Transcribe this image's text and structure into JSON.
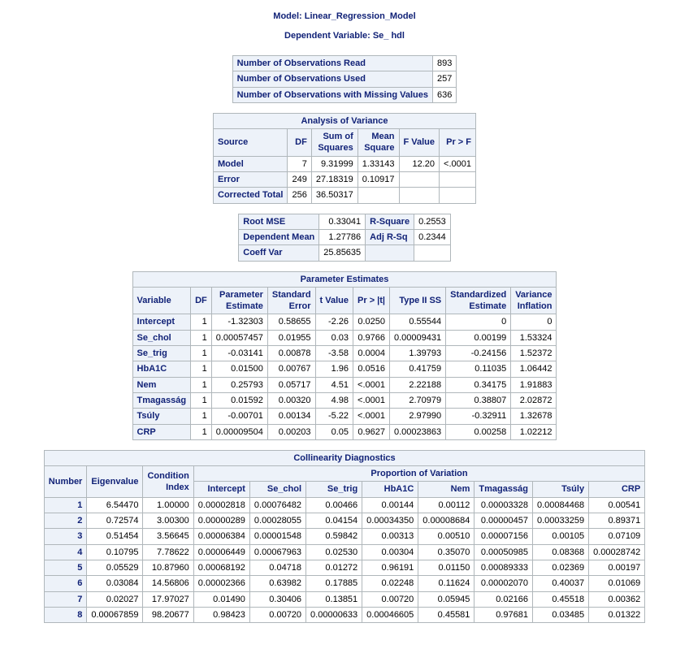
{
  "header": {
    "model_label": "Model: Linear_Regression_Model",
    "depvar_label": "Dependent Variable: Se_ hdl"
  },
  "obs": {
    "rows": [
      {
        "label": "Number of Observations Read",
        "value": "893"
      },
      {
        "label": "Number of Observations Used",
        "value": "257"
      },
      {
        "label": "Number of Observations with Missing Values",
        "value": "636"
      }
    ]
  },
  "anova": {
    "title": "Analysis of Variance",
    "cols": [
      "Source",
      "DF",
      "Sum of\nSquares",
      "Mean\nSquare",
      "F Value",
      "Pr > F"
    ],
    "rows": [
      {
        "source": "Model",
        "df": "7",
        "ss": "9.31999",
        "ms": "1.33143",
        "f": "12.20",
        "p": "<.0001"
      },
      {
        "source": "Error",
        "df": "249",
        "ss": "27.18319",
        "ms": "0.10917",
        "f": "",
        "p": ""
      },
      {
        "source": "Corrected Total",
        "df": "256",
        "ss": "36.50317",
        "ms": "",
        "f": "",
        "p": ""
      }
    ]
  },
  "fit": {
    "r1": {
      "l": "Root MSE",
      "v": "0.33041",
      "l2": "R-Square",
      "v2": "0.2553"
    },
    "r2": {
      "l": "Dependent Mean",
      "v": "1.27786",
      "l2": "Adj R-Sq",
      "v2": "0.2344"
    },
    "r3": {
      "l": "Coeff Var",
      "v": "25.85635",
      "l2": "",
      "v2": ""
    }
  },
  "params": {
    "title": "Parameter Estimates",
    "cols": [
      "Variable",
      "DF",
      "Parameter\nEstimate",
      "Standard\nError",
      "t Value",
      "Pr > |t|",
      "Type II SS",
      "Standardized\nEstimate",
      "Variance\nInflation"
    ],
    "rows": [
      {
        "v": "Intercept",
        "df": "1",
        "pe": "-1.32303",
        "se": "0.58655",
        "t": "-2.26",
        "p": "0.0250",
        "ss": "0.55544",
        "std": "0",
        "vif": "0"
      },
      {
        "v": "Se_chol",
        "df": "1",
        "pe": "0.00057457",
        "se": "0.01955",
        "t": "0.03",
        "p": "0.9766",
        "ss": "0.00009431",
        "std": "0.00199",
        "vif": "1.53324"
      },
      {
        "v": "Se_trig",
        "df": "1",
        "pe": "-0.03141",
        "se": "0.00878",
        "t": "-3.58",
        "p": "0.0004",
        "ss": "1.39793",
        "std": "-0.24156",
        "vif": "1.52372"
      },
      {
        "v": "HbA1C",
        "df": "1",
        "pe": "0.01500",
        "se": "0.00767",
        "t": "1.96",
        "p": "0.0516",
        "ss": "0.41759",
        "std": "0.11035",
        "vif": "1.06442"
      },
      {
        "v": "Nem",
        "df": "1",
        "pe": "0.25793",
        "se": "0.05717",
        "t": "4.51",
        "p": "<.0001",
        "ss": "2.22188",
        "std": "0.34175",
        "vif": "1.91883"
      },
      {
        "v": "Tmagasság",
        "df": "1",
        "pe": "0.01592",
        "se": "0.00320",
        "t": "4.98",
        "p": "<.0001",
        "ss": "2.70979",
        "std": "0.38807",
        "vif": "2.02872"
      },
      {
        "v": "Tsúly",
        "df": "1",
        "pe": "-0.00701",
        "se": "0.00134",
        "t": "-5.22",
        "p": "<.0001",
        "ss": "2.97990",
        "std": "-0.32911",
        "vif": "1.32678"
      },
      {
        "v": "CRP",
        "df": "1",
        "pe": "0.00009504",
        "se": "0.00203",
        "t": "0.05",
        "p": "0.9627",
        "ss": "0.00023863",
        "std": "0.00258",
        "vif": "1.02212"
      }
    ]
  },
  "collin": {
    "title": "Collinearity Diagnostics",
    "prop_label": "Proportion of Variation",
    "cols": [
      "Number",
      "Eigenvalue",
      "Condition\nIndex",
      "Intercept",
      "Se_chol",
      "Se_trig",
      "HbA1C",
      "Nem",
      "Tmagasság",
      "Tsúly",
      "CRP"
    ],
    "rows": [
      {
        "n": "1",
        "ev": "6.54470",
        "ci": "1.00000",
        "c": [
          "0.00002818",
          "0.00076482",
          "0.00466",
          "0.00144",
          "0.00112",
          "0.00003328",
          "0.00084468",
          "0.00541"
        ]
      },
      {
        "n": "2",
        "ev": "0.72574",
        "ci": "3.00300",
        "c": [
          "0.00000289",
          "0.00028055",
          "0.04154",
          "0.00034350",
          "0.00008684",
          "0.00000457",
          "0.00033259",
          "0.89371"
        ]
      },
      {
        "n": "3",
        "ev": "0.51454",
        "ci": "3.56645",
        "c": [
          "0.00006384",
          "0.00001548",
          "0.59842",
          "0.00313",
          "0.00510",
          "0.00007156",
          "0.00105",
          "0.07109"
        ]
      },
      {
        "n": "4",
        "ev": "0.10795",
        "ci": "7.78622",
        "c": [
          "0.00006449",
          "0.00067963",
          "0.02530",
          "0.00304",
          "0.35070",
          "0.00050985",
          "0.08368",
          "0.00028742"
        ]
      },
      {
        "n": "5",
        "ev": "0.05529",
        "ci": "10.87960",
        "c": [
          "0.00068192",
          "0.04718",
          "0.01272",
          "0.96191",
          "0.01150",
          "0.00089333",
          "0.02369",
          "0.00197"
        ]
      },
      {
        "n": "6",
        "ev": "0.03084",
        "ci": "14.56806",
        "c": [
          "0.00002366",
          "0.63982",
          "0.17885",
          "0.02248",
          "0.11624",
          "0.00002070",
          "0.40037",
          "0.01069"
        ]
      },
      {
        "n": "7",
        "ev": "0.02027",
        "ci": "17.97027",
        "c": [
          "0.01490",
          "0.30406",
          "0.13851",
          "0.00720",
          "0.05945",
          "0.02166",
          "0.45518",
          "0.00362"
        ]
      },
      {
        "n": "8",
        "ev": "0.00067859",
        "ci": "98.20677",
        "c": [
          "0.98423",
          "0.00720",
          "0.00000633",
          "0.00046605",
          "0.45581",
          "0.97681",
          "0.03485",
          "0.01322"
        ]
      }
    ]
  },
  "style": {
    "header_bg": "#edf2f9",
    "border": "#b0b7bb",
    "text": "#112277"
  }
}
